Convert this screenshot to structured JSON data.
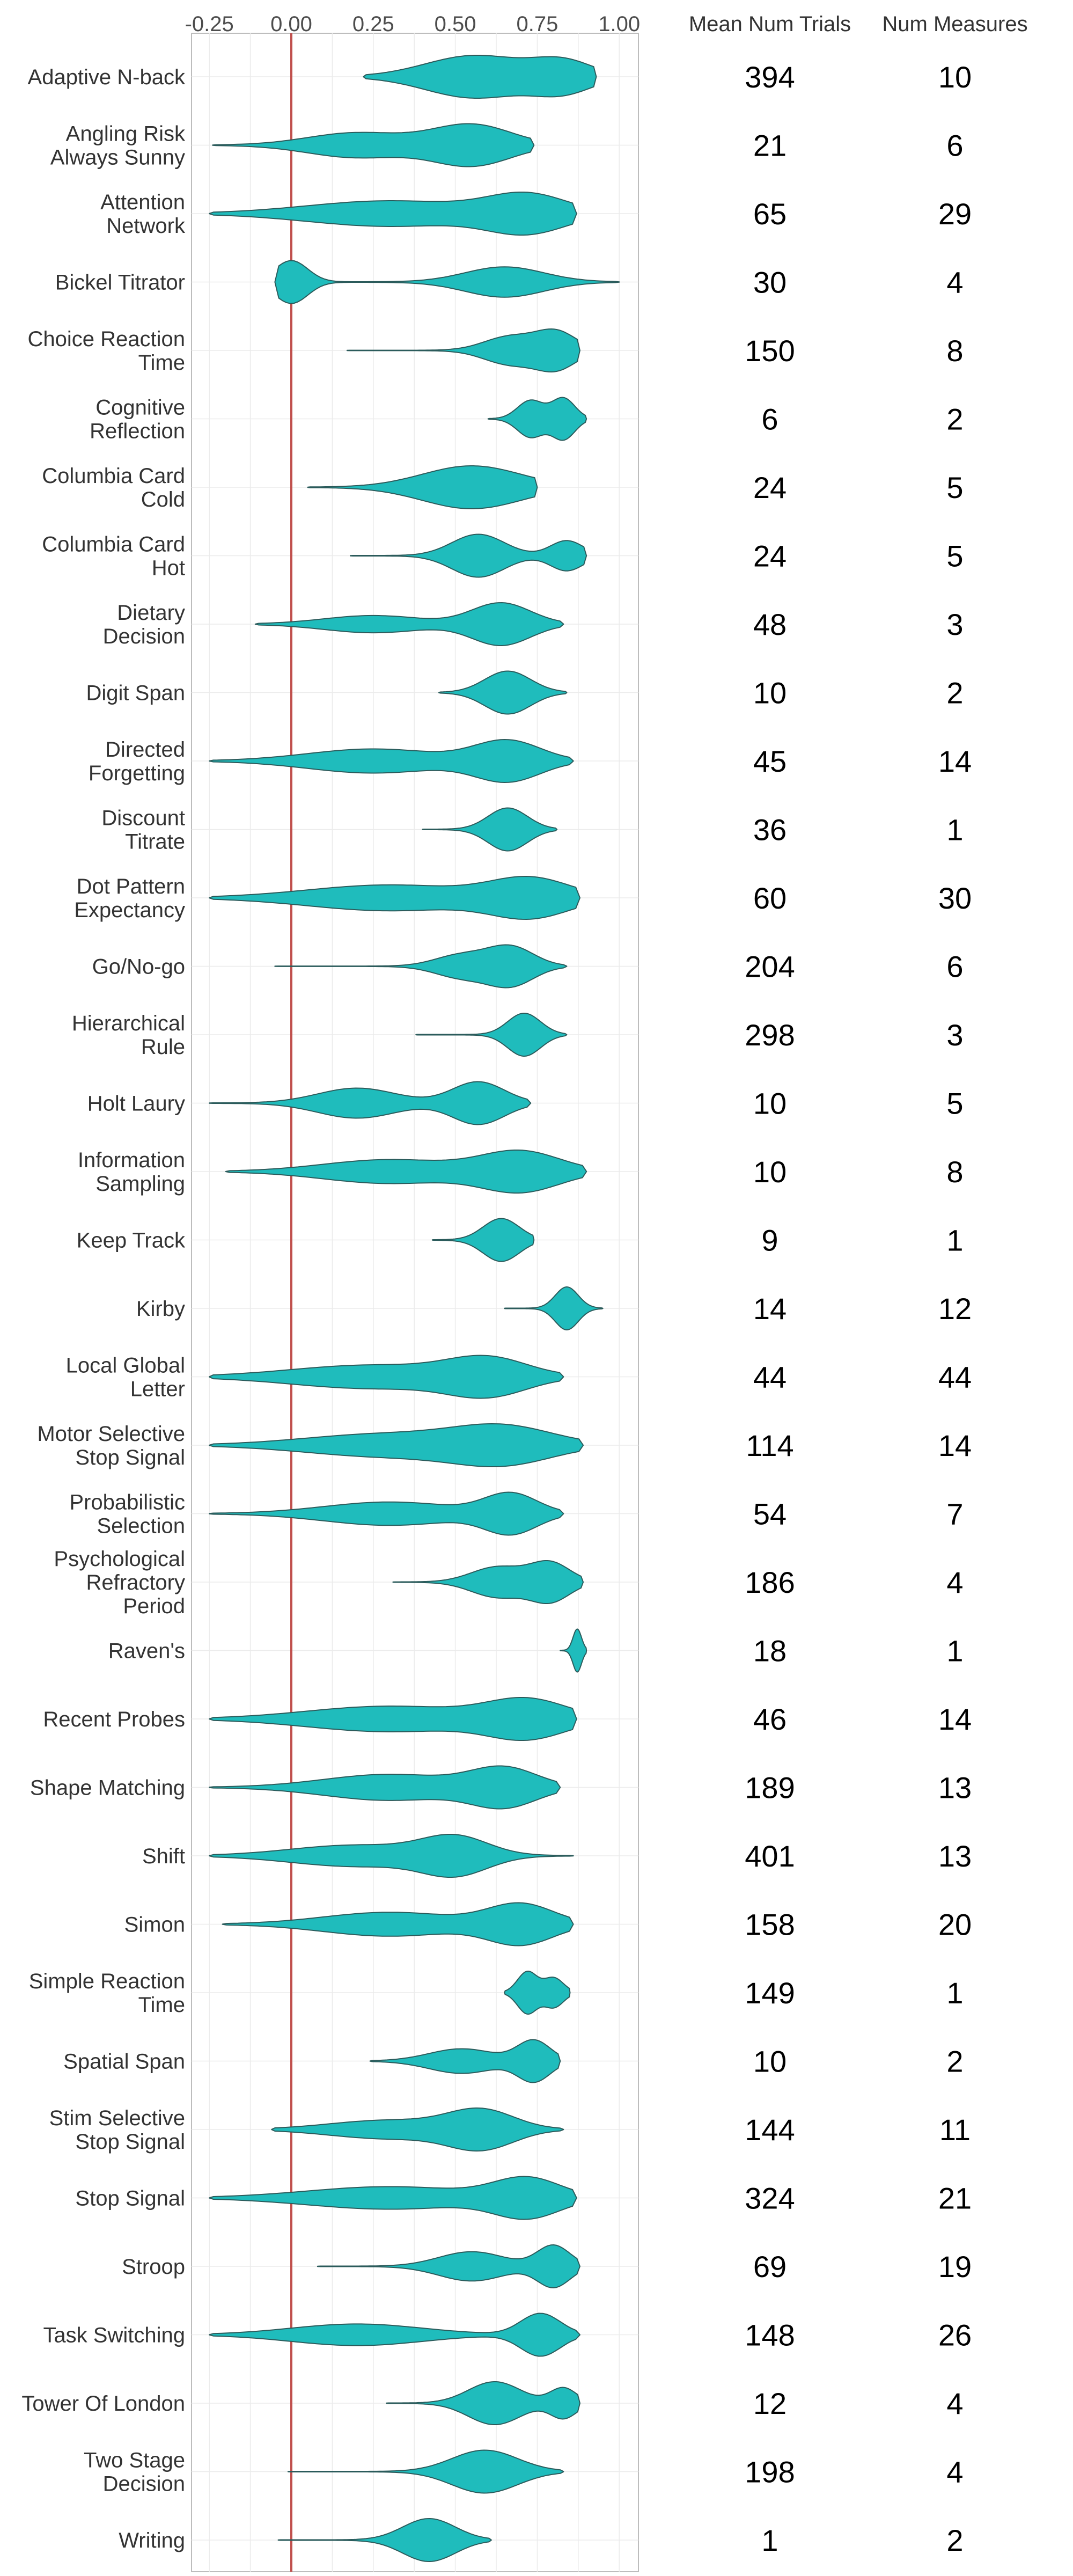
{
  "chart_data": {
    "type": "violin",
    "x_ticks": [
      "-0.25",
      "0.00",
      "0.25",
      "0.50",
      "0.75",
      "1.00"
    ],
    "xlim": [
      -0.3,
      1.05
    ],
    "reference_line_x": 0,
    "grid": true,
    "colors": {
      "violin_fill": "#1fbcbc",
      "violin_stroke": "#2b5b5b",
      "reference_line": "#c0504d",
      "grid": "#ebebeb",
      "panel_border": "#bdbdbd"
    },
    "columns": {
      "trials_header": "Mean Num Trials",
      "measures_header": "Num Measures"
    },
    "tasks": [
      {
        "label": [
          "Adaptive N-back"
        ],
        "trials": 394,
        "measures": 10,
        "range": [
          0.22,
          0.93
        ],
        "modes": [
          [
            0.56,
            1.0,
            0.15
          ],
          [
            0.83,
            0.7,
            0.09
          ]
        ]
      },
      {
        "label": [
          "Angling Risk",
          "Always Sunny"
        ],
        "trials": 21,
        "measures": 6,
        "range": [
          -0.24,
          0.74
        ],
        "modes": [
          [
            0.2,
            0.6,
            0.15
          ],
          [
            0.55,
            1.0,
            0.12
          ]
        ]
      },
      {
        "label": [
          "Attention",
          "Network"
        ],
        "trials": 65,
        "measures": 29,
        "range": [
          -0.25,
          0.87
        ],
        "modes": [
          [
            0.3,
            0.7,
            0.25
          ],
          [
            0.72,
            1.0,
            0.12
          ]
        ]
      },
      {
        "label": [
          "Bickel Titrator"
        ],
        "trials": 30,
        "measures": 4,
        "range": [
          -0.05,
          1.0
        ],
        "modes": [
          [
            0.0,
            1.0,
            0.05
          ],
          [
            0.65,
            0.7,
            0.12
          ]
        ]
      },
      {
        "label": [
          "Choice Reaction",
          "Time"
        ],
        "trials": 150,
        "measures": 8,
        "range": [
          0.17,
          0.88
        ],
        "modes": [
          [
            0.67,
            0.8,
            0.08
          ],
          [
            0.81,
            1.0,
            0.06
          ]
        ]
      },
      {
        "label": [
          "Cognitive",
          "Reflection"
        ],
        "trials": 6,
        "measures": 2,
        "range": [
          0.6,
          0.9
        ],
        "modes": [
          [
            0.73,
            0.9,
            0.04
          ],
          [
            0.83,
            1.0,
            0.035
          ]
        ]
      },
      {
        "label": [
          "Columbia Card",
          "Cold"
        ],
        "trials": 24,
        "measures": 5,
        "range": [
          0.05,
          0.75
        ],
        "modes": [
          [
            0.55,
            1.0,
            0.15
          ]
        ]
      },
      {
        "label": [
          "Columbia Card",
          "Hot"
        ],
        "trials": 24,
        "measures": 5,
        "range": [
          0.18,
          0.9
        ],
        "modes": [
          [
            0.57,
            1.0,
            0.08
          ],
          [
            0.84,
            0.7,
            0.05
          ]
        ]
      },
      {
        "label": [
          "Dietary",
          "Decision"
        ],
        "trials": 48,
        "measures": 3,
        "range": [
          -0.11,
          0.83
        ],
        "modes": [
          [
            0.25,
            0.4,
            0.15
          ],
          [
            0.64,
            1.0,
            0.09
          ]
        ]
      },
      {
        "label": [
          "Digit Span"
        ],
        "trials": 10,
        "measures": 2,
        "range": [
          0.45,
          0.84
        ],
        "modes": [
          [
            0.66,
            1.0,
            0.07
          ]
        ]
      },
      {
        "label": [
          "Directed",
          "Forgetting"
        ],
        "trials": 45,
        "measures": 14,
        "range": [
          -0.25,
          0.86
        ],
        "modes": [
          [
            0.25,
            0.6,
            0.2
          ],
          [
            0.66,
            1.0,
            0.1
          ]
        ]
      },
      {
        "label": [
          "Discount",
          "Titrate"
        ],
        "trials": 36,
        "measures": 1,
        "range": [
          0.4,
          0.81
        ],
        "modes": [
          [
            0.66,
            1.0,
            0.06
          ]
        ]
      },
      {
        "label": [
          "Dot Pattern",
          "Expectancy"
        ],
        "trials": 60,
        "measures": 30,
        "range": [
          -0.25,
          0.88
        ],
        "modes": [
          [
            0.3,
            0.7,
            0.25
          ],
          [
            0.73,
            1.0,
            0.12
          ]
        ]
      },
      {
        "label": [
          "Go/No-go"
        ],
        "trials": 204,
        "measures": 6,
        "range": [
          -0.05,
          0.84
        ],
        "modes": [
          [
            0.52,
            0.6,
            0.08
          ],
          [
            0.67,
            1.0,
            0.07
          ]
        ]
      },
      {
        "label": [
          "Hierarchical",
          "Rule"
        ],
        "trials": 298,
        "measures": 3,
        "range": [
          0.38,
          0.84
        ],
        "modes": [
          [
            0.71,
            1.0,
            0.05
          ]
        ]
      },
      {
        "label": [
          "Holt Laury"
        ],
        "trials": 10,
        "measures": 5,
        "range": [
          -0.25,
          0.73
        ],
        "modes": [
          [
            0.2,
            0.7,
            0.12
          ],
          [
            0.57,
            1.0,
            0.08
          ]
        ]
      },
      {
        "label": [
          "Information",
          "Sampling"
        ],
        "trials": 10,
        "measures": 8,
        "range": [
          -0.2,
          0.9
        ],
        "modes": [
          [
            0.3,
            0.6,
            0.2
          ],
          [
            0.7,
            1.0,
            0.12
          ]
        ]
      },
      {
        "label": [
          "Keep Track"
        ],
        "trials": 9,
        "measures": 1,
        "range": [
          0.43,
          0.74
        ],
        "modes": [
          [
            0.64,
            1.0,
            0.055
          ]
        ]
      },
      {
        "label": [
          "Kirby"
        ],
        "trials": 14,
        "measures": 12,
        "range": [
          0.65,
          0.95
        ],
        "modes": [
          [
            0.84,
            1.0,
            0.035
          ]
        ]
      },
      {
        "label": [
          "Local Global",
          "Letter"
        ],
        "trials": 44,
        "measures": 44,
        "range": [
          -0.25,
          0.83
        ],
        "modes": [
          [
            0.25,
            0.7,
            0.25
          ],
          [
            0.6,
            1.0,
            0.12
          ]
        ]
      },
      {
        "label": [
          "Motor Selective",
          "Stop Signal"
        ],
        "trials": 114,
        "measures": 14,
        "range": [
          -0.25,
          0.89
        ],
        "modes": [
          [
            0.3,
            0.7,
            0.25
          ],
          [
            0.65,
            1.0,
            0.15
          ]
        ]
      },
      {
        "label": [
          "Probabilistic",
          "Selection"
        ],
        "trials": 54,
        "measures": 7,
        "range": [
          -0.25,
          0.83
        ],
        "modes": [
          [
            0.3,
            0.6,
            0.2
          ],
          [
            0.67,
            1.0,
            0.08
          ]
        ]
      },
      {
        "label": [
          "Psychological",
          "Refractory",
          "Period"
        ],
        "trials": 186,
        "measures": 4,
        "range": [
          0.31,
          0.89
        ],
        "modes": [
          [
            0.63,
            0.8,
            0.08
          ],
          [
            0.79,
            1.0,
            0.06
          ]
        ]
      },
      {
        "label": [
          "Raven's"
        ],
        "trials": 18,
        "measures": 1,
        "range": [
          0.82,
          0.9
        ],
        "modes": [
          [
            0.872,
            1.0,
            0.013
          ]
        ]
      },
      {
        "label": [
          "Recent Probes"
        ],
        "trials": 46,
        "measures": 14,
        "range": [
          -0.25,
          0.87
        ],
        "modes": [
          [
            0.3,
            0.7,
            0.25
          ],
          [
            0.72,
            1.0,
            0.12
          ]
        ]
      },
      {
        "label": [
          "Shape Matching"
        ],
        "trials": 189,
        "measures": 13,
        "range": [
          -0.25,
          0.82
        ],
        "modes": [
          [
            0.3,
            0.7,
            0.2
          ],
          [
            0.65,
            1.0,
            0.1
          ]
        ]
      },
      {
        "label": [
          "Shift"
        ],
        "trials": 401,
        "measures": 13,
        "range": [
          -0.25,
          0.86
        ],
        "modes": [
          [
            0.2,
            0.6,
            0.2
          ],
          [
            0.5,
            1.0,
            0.1
          ]
        ]
      },
      {
        "label": [
          "Simon"
        ],
        "trials": 158,
        "measures": 20,
        "range": [
          -0.21,
          0.86
        ],
        "modes": [
          [
            0.3,
            0.6,
            0.2
          ],
          [
            0.7,
            1.0,
            0.1
          ]
        ]
      },
      {
        "label": [
          "Simple Reaction",
          "Time"
        ],
        "trials": 149,
        "measures": 1,
        "range": [
          0.65,
          0.85
        ],
        "modes": [
          [
            0.72,
            1.0,
            0.03
          ],
          [
            0.8,
            0.7,
            0.03
          ]
        ]
      },
      {
        "label": [
          "Spatial Span"
        ],
        "trials": 10,
        "measures": 2,
        "range": [
          0.24,
          0.82
        ],
        "modes": [
          [
            0.52,
            0.6,
            0.1
          ],
          [
            0.74,
            1.0,
            0.05
          ]
        ]
      },
      {
        "label": [
          "Stim Selective",
          "Stop Signal"
        ],
        "trials": 144,
        "measures": 11,
        "range": [
          -0.06,
          0.83
        ],
        "modes": [
          [
            0.3,
            0.5,
            0.18
          ],
          [
            0.58,
            1.0,
            0.1
          ]
        ]
      },
      {
        "label": [
          "Stop Signal"
        ],
        "trials": 324,
        "measures": 21,
        "range": [
          -0.25,
          0.87
        ],
        "modes": [
          [
            0.3,
            0.6,
            0.25
          ],
          [
            0.72,
            1.0,
            0.1
          ]
        ]
      },
      {
        "label": [
          "Stroop"
        ],
        "trials": 69,
        "measures": 19,
        "range": [
          0.08,
          0.88
        ],
        "modes": [
          [
            0.55,
            0.7,
            0.1
          ],
          [
            0.8,
            1.0,
            0.05
          ]
        ]
      },
      {
        "label": [
          "Task Switching"
        ],
        "trials": 148,
        "measures": 26,
        "range": [
          -0.25,
          0.88
        ],
        "modes": [
          [
            0.2,
            0.5,
            0.2
          ],
          [
            0.76,
            1.0,
            0.06
          ]
        ]
      },
      {
        "label": [
          "Tower Of London"
        ],
        "trials": 12,
        "measures": 4,
        "range": [
          0.29,
          0.88
        ],
        "modes": [
          [
            0.62,
            1.0,
            0.08
          ],
          [
            0.83,
            0.7,
            0.04
          ]
        ]
      },
      {
        "label": [
          "Two Stage",
          "Decision"
        ],
        "trials": 198,
        "measures": 4,
        "range": [
          -0.01,
          0.83
        ],
        "modes": [
          [
            0.59,
            1.0,
            0.1
          ]
        ]
      },
      {
        "label": [
          "Writing"
        ],
        "trials": 1,
        "measures": 2,
        "range": [
          -0.04,
          0.61
        ],
        "modes": [
          [
            0.42,
            1.0,
            0.08
          ]
        ]
      }
    ]
  }
}
